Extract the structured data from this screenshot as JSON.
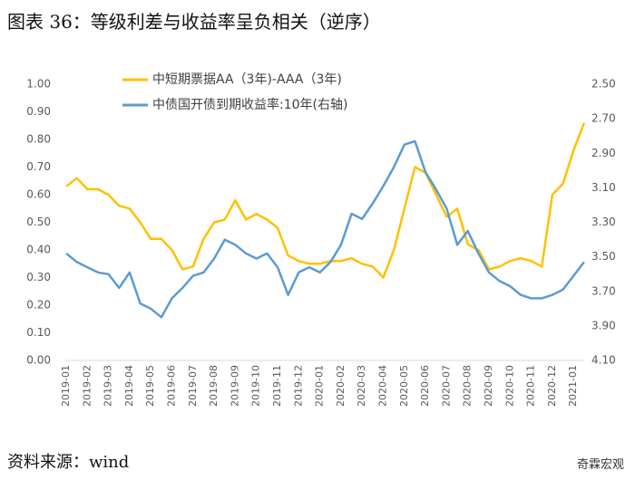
{
  "chart_data": {
    "type": "line",
    "title": "图表 36：等级利差与收益率呈负相关（逆序）",
    "source": "资料来源：wind",
    "watermark": "奇霖宏观",
    "categories": [
      "2019-01",
      null,
      "2019-02",
      null,
      "2019-03",
      null,
      "2019-04",
      null,
      "2019-05",
      null,
      "2019-06",
      null,
      "2019-07",
      null,
      "2019-08",
      null,
      "2019-09",
      null,
      "2019-10",
      null,
      "2019-11",
      null,
      "2019-12",
      null,
      "2020-01",
      null,
      "2020-02",
      null,
      "2020-03",
      null,
      "2020-04",
      null,
      "2020-05",
      null,
      "2020-06",
      null,
      "2020-07",
      null,
      "2020-08",
      null,
      "2020-09",
      null,
      "2020-10",
      null,
      "2020-11",
      null,
      "2020-12",
      null,
      "2021-01",
      null
    ],
    "series": [
      {
        "name": "中短期票据AA（3年)-AAA（3年)",
        "color": "#ffc000",
        "values": [
          0.63,
          0.66,
          0.62,
          0.62,
          0.6,
          0.56,
          0.55,
          0.5,
          0.44,
          0.44,
          0.4,
          0.33,
          0.34,
          0.44,
          0.5,
          0.51,
          0.58,
          0.51,
          0.53,
          0.51,
          0.48,
          0.38,
          0.36,
          0.35,
          0.35,
          0.36,
          0.36,
          0.37,
          0.35,
          0.34,
          0.3,
          0.4,
          0.55,
          0.7,
          0.68,
          0.6,
          0.52,
          0.55,
          0.42,
          0.4,
          0.33,
          0.34,
          0.36,
          0.37,
          0.36,
          0.34,
          0.6,
          0.64,
          0.76,
          0.86
        ]
      },
      {
        "name": "中债国开债到期收益率:10年(右轴)",
        "color": "#5b9bd5",
        "axis": "y2",
        "values": [
          3.48,
          3.53,
          3.56,
          3.59,
          3.6,
          3.68,
          3.59,
          3.77,
          3.8,
          3.85,
          3.74,
          3.68,
          3.61,
          3.59,
          3.51,
          3.4,
          3.43,
          3.48,
          3.51,
          3.48,
          3.56,
          3.72,
          3.59,
          3.56,
          3.59,
          3.53,
          3.43,
          3.25,
          3.28,
          3.19,
          3.09,
          2.98,
          2.85,
          2.83,
          3.01,
          3.11,
          3.22,
          3.43,
          3.35,
          3.48,
          3.59,
          3.64,
          3.67,
          3.72,
          3.74,
          3.74,
          3.72,
          3.69,
          3.61,
          3.53
        ]
      }
    ],
    "ylim": [
      0,
      1
    ],
    "yticks": [
      {
        "value": 0,
        "label": "0.00"
      },
      {
        "value": 0.1,
        "label": "0.10"
      },
      {
        "value": 0.2,
        "label": "0.20"
      },
      {
        "value": 0.3,
        "label": "0.30"
      },
      {
        "value": 0.4,
        "label": "0.40"
      },
      {
        "value": 0.5,
        "label": "0.50"
      },
      {
        "value": 0.6,
        "label": "0.60"
      },
      {
        "value": 0.7,
        "label": "0.70"
      },
      {
        "value": 0.8,
        "label": "0.80"
      },
      {
        "value": 0.9,
        "label": "0.90"
      },
      {
        "value": 1,
        "label": "1.00"
      }
    ],
    "y2lim": [
      4.1,
      2.5
    ],
    "y2ticks": [
      {
        "value": 2.5,
        "label": "2.50"
      },
      {
        "value": 2.7,
        "label": "2.70"
      },
      {
        "value": 2.9,
        "label": "2.90"
      },
      {
        "value": 3.1,
        "label": "3.10"
      },
      {
        "value": 3.3,
        "label": "3.30"
      },
      {
        "value": 3.5,
        "label": "3.50"
      },
      {
        "value": 3.7,
        "label": "3.70"
      },
      {
        "value": 3.9,
        "label": "3.90"
      },
      {
        "value": 4.1,
        "label": "4.10"
      }
    ],
    "legend": "top"
  }
}
